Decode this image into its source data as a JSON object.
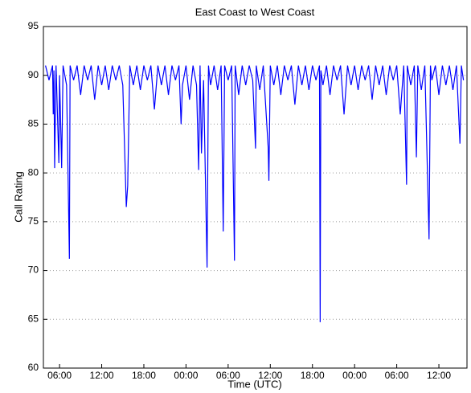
{
  "chart_data": {
    "type": "line",
    "title": "East Coast to West Coast",
    "xlabel": "Time (UTC)",
    "ylabel": "Call Rating",
    "color": "#0000ff",
    "grid": true,
    "xlim": [
      3.7,
      64
    ],
    "ylim": [
      60,
      95
    ],
    "xticks": [
      {
        "value": 6,
        "label": "06:00"
      },
      {
        "value": 12,
        "label": "12:00"
      },
      {
        "value": 18,
        "label": "18:00"
      },
      {
        "value": 24,
        "label": "00:00"
      },
      {
        "value": 30,
        "label": "06:00"
      },
      {
        "value": 36,
        "label": "12:00"
      },
      {
        "value": 42,
        "label": "18:00"
      },
      {
        "value": 48,
        "label": "00:00"
      },
      {
        "value": 54,
        "label": "06:00"
      },
      {
        "value": 60,
        "label": "12:00"
      }
    ],
    "yticks": [
      60,
      65,
      70,
      75,
      80,
      85,
      90,
      95
    ],
    "x": [
      4.0,
      4.5,
      5.0,
      5.1,
      5.2,
      5.3,
      5.5,
      5.9,
      6.0,
      6.3,
      6.5,
      7.0,
      7.4,
      7.5,
      8.0,
      8.5,
      9.0,
      9.5,
      10.0,
      10.5,
      11.0,
      11.5,
      12.0,
      12.5,
      13.0,
      13.5,
      14.0,
      14.5,
      15.0,
      15.5,
      15.7,
      16.0,
      16.5,
      17.0,
      17.5,
      18.0,
      18.5,
      19.0,
      19.5,
      20.0,
      20.5,
      21.0,
      21.5,
      22.0,
      22.5,
      23.0,
      23.3,
      23.5,
      24.0,
      24.5,
      25.0,
      25.5,
      25.8,
      26.0,
      26.2,
      26.5,
      27.0,
      27.2,
      27.5,
      28.0,
      28.5,
      29.0,
      29.3,
      29.5,
      30.0,
      30.5,
      30.9,
      31.0,
      31.5,
      32.0,
      32.5,
      33.0,
      33.5,
      33.9,
      34.0,
      34.5,
      35.0,
      35.7,
      35.8,
      36.0,
      36.5,
      37.0,
      37.5,
      38.0,
      38.5,
      39.0,
      39.5,
      40.0,
      40.5,
      41.0,
      41.5,
      42.0,
      42.5,
      43.0,
      43.1,
      43.2,
      43.5,
      44.0,
      44.5,
      45.0,
      45.5,
      46.0,
      46.5,
      47.0,
      47.5,
      48.0,
      48.5,
      49.0,
      49.5,
      50.0,
      50.5,
      51.0,
      51.5,
      52.0,
      52.5,
      53.0,
      53.5,
      54.0,
      54.5,
      55.0,
      55.4,
      55.5,
      56.0,
      56.5,
      56.8,
      57.0,
      57.5,
      58.0,
      58.6,
      58.8,
      59.0,
      59.5,
      60.0,
      60.5,
      61.0,
      61.5,
      62.0,
      62.5,
      63.0,
      63.2,
      63.5
    ],
    "values": [
      91,
      89.5,
      91,
      86,
      90.5,
      80.5,
      91,
      81,
      90,
      80.5,
      91,
      89,
      71.2,
      91,
      89.5,
      91,
      88,
      91,
      89.5,
      91,
      87.5,
      91,
      89,
      91,
      88.5,
      91,
      89.5,
      91,
      89,
      76.5,
      78.7,
      91,
      89,
      91,
      88.5,
      91,
      89.5,
      91,
      86.5,
      91,
      89,
      91,
      88,
      91,
      89.5,
      91,
      85,
      89,
      91,
      87.5,
      91,
      89,
      80.3,
      91,
      82,
      89.5,
      70.3,
      91,
      89,
      91,
      88.5,
      91,
      74,
      91,
      89.5,
      91,
      71,
      91,
      88,
      91,
      89,
      91,
      89.5,
      82.5,
      91,
      88.5,
      91,
      82.6,
      79.2,
      91,
      89,
      91,
      88,
      91,
      89.5,
      91,
      87,
      91,
      89,
      91,
      88.5,
      91,
      89.5,
      91,
      64.7,
      90.5,
      89,
      91,
      88,
      91,
      89.5,
      91,
      86,
      91,
      89,
      91,
      88.5,
      91,
      89.5,
      91,
      87.5,
      91,
      89,
      91,
      88,
      91,
      89.5,
      91,
      86,
      91,
      78.8,
      91,
      89,
      91,
      81.6,
      91,
      88.5,
      91,
      73.2,
      91,
      89.5,
      91,
      88,
      91,
      89,
      91,
      88.5,
      91,
      83,
      91,
      89.5
    ]
  }
}
